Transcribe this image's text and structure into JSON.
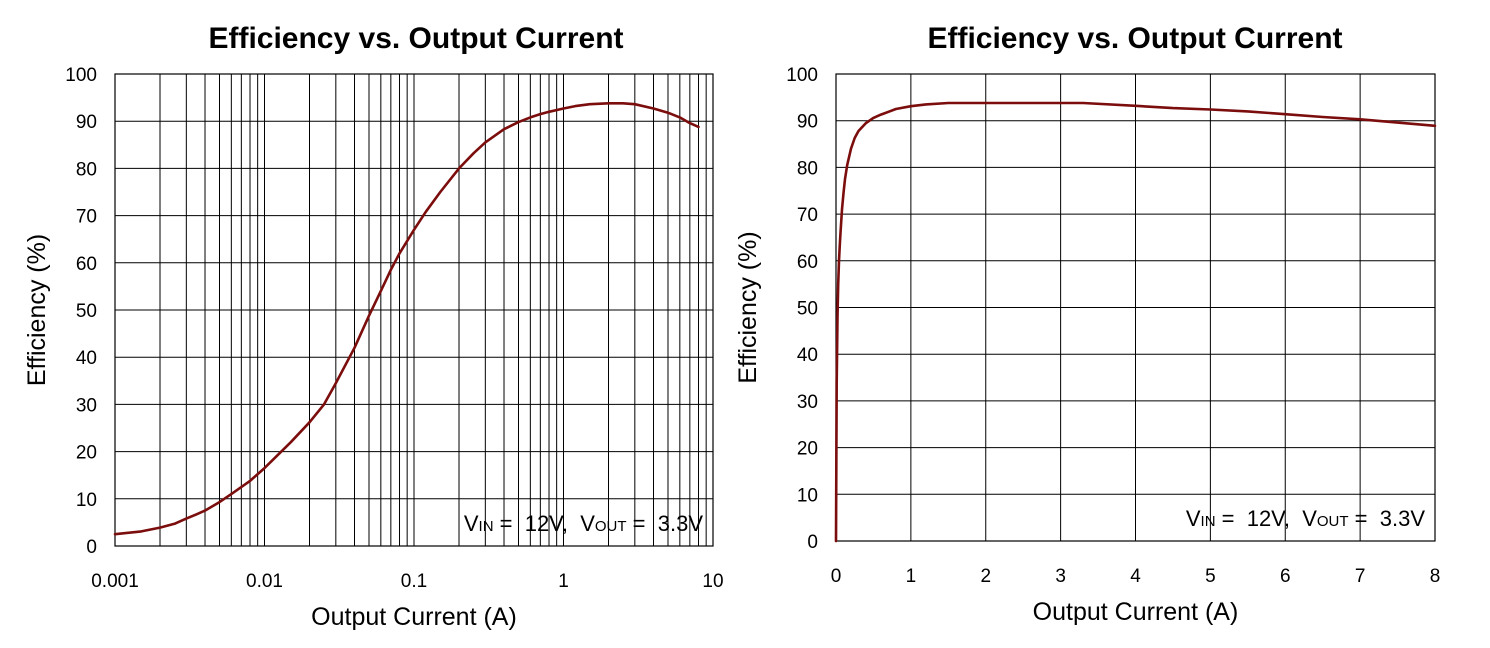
{
  "colors": {
    "curve": "#7b0d0d",
    "grid": "#000000",
    "background": "#ffffff"
  },
  "chart_data": [
    {
      "type": "line",
      "title": "Efficiency vs. Output Current",
      "xlabel": "Output Current (A)",
      "ylabel": "Efficiency (%)",
      "xscale": "log",
      "xlim": [
        0.001,
        10
      ],
      "ylim": [
        0,
        100
      ],
      "xticks": [
        0.001,
        0.01,
        0.1,
        1,
        10
      ],
      "xtick_labels": [
        "0.001",
        "0.01",
        "0.1",
        "1",
        "10"
      ],
      "yticks": [
        0,
        10,
        20,
        30,
        40,
        50,
        60,
        70,
        80,
        90,
        100
      ],
      "ytick_labels": [
        "0",
        "10",
        "20",
        "30",
        "40",
        "50",
        "60",
        "70",
        "80",
        "90",
        "100"
      ],
      "grid": true,
      "annotation": {
        "v_in_main": "V",
        "v_in_sub": "IN",
        "v_in_value": " =  12V,  ",
        "v_out_main": "V",
        "v_out_sub": "OUT",
        "v_out_value": " =  3.3V",
        "placement": "bottom-right"
      },
      "series": [
        {
          "x": [
            0.001,
            0.0015,
            0.002,
            0.0025,
            0.003,
            0.0035,
            0.004,
            0.005,
            0.006,
            0.008,
            0.01,
            0.015,
            0.02,
            0.025,
            0.03,
            0.04,
            0.05,
            0.06,
            0.07,
            0.08,
            0.1,
            0.12,
            0.15,
            0.2,
            0.25,
            0.3,
            0.4,
            0.5,
            0.6,
            0.7,
            0.8,
            1.0,
            1.2,
            1.5,
            2.0,
            2.5,
            3.0,
            4.0,
            5.0,
            6.0,
            7.0,
            8.0
          ],
          "y": [
            2.5,
            3.1,
            3.9,
            4.7,
            5.8,
            6.7,
            7.5,
            9.3,
            11.0,
            13.8,
            16.5,
            22.0,
            26.2,
            30.0,
            34.5,
            42.0,
            48.8,
            54.0,
            58.5,
            62.0,
            67.0,
            70.8,
            75.0,
            80.0,
            83.2,
            85.5,
            88.3,
            89.8,
            90.8,
            91.5,
            92.0,
            92.7,
            93.2,
            93.6,
            93.8,
            93.8,
            93.6,
            92.7,
            91.8,
            90.8,
            89.6,
            88.8
          ]
        }
      ]
    },
    {
      "type": "line",
      "title": "Efficiency vs. Output Current",
      "xlabel": "Output Current (A)",
      "ylabel": "Efficiency (%)",
      "xscale": "linear",
      "xlim": [
        0,
        8
      ],
      "ylim": [
        0,
        100
      ],
      "xticks": [
        0,
        1,
        2,
        3,
        4,
        5,
        6,
        7,
        8
      ],
      "xtick_labels": [
        "0",
        "1",
        "2",
        "3",
        "4",
        "5",
        "6",
        "7",
        "8"
      ],
      "yticks": [
        0,
        10,
        20,
        30,
        40,
        50,
        60,
        70,
        80,
        90,
        100
      ],
      "ytick_labels": [
        "0",
        "10",
        "20",
        "30",
        "40",
        "50",
        "60",
        "70",
        "80",
        "90",
        "100"
      ],
      "grid": true,
      "annotation": {
        "v_in_main": "V",
        "v_in_sub": "IN",
        "v_in_value": " =  12V,  ",
        "v_out_main": "V",
        "v_out_sub": "OUT",
        "v_out_value": " =  3.3V",
        "placement": "bottom-right"
      },
      "series": [
        {
          "x": [
            0.0,
            0.005,
            0.01,
            0.02,
            0.03,
            0.04,
            0.05,
            0.06,
            0.08,
            0.1,
            0.12,
            0.15,
            0.2,
            0.25,
            0.3,
            0.4,
            0.5,
            0.6,
            0.8,
            1.0,
            1.2,
            1.5,
            2.0,
            2.5,
            3.0,
            3.3,
            4.0,
            4.5,
            5.0,
            5.5,
            6.0,
            6.5,
            7.0,
            7.5,
            8.0
          ],
          "y": [
            0.0,
            20.0,
            34.0,
            48.0,
            55.0,
            60.0,
            63.0,
            66.0,
            71.0,
            74.5,
            77.5,
            80.5,
            84.0,
            86.3,
            87.8,
            89.5,
            90.6,
            91.3,
            92.5,
            93.1,
            93.5,
            93.8,
            93.8,
            93.8,
            93.8,
            93.8,
            93.2,
            92.7,
            92.4,
            92.0,
            91.4,
            90.8,
            90.3,
            89.6,
            88.9
          ]
        }
      ]
    }
  ]
}
